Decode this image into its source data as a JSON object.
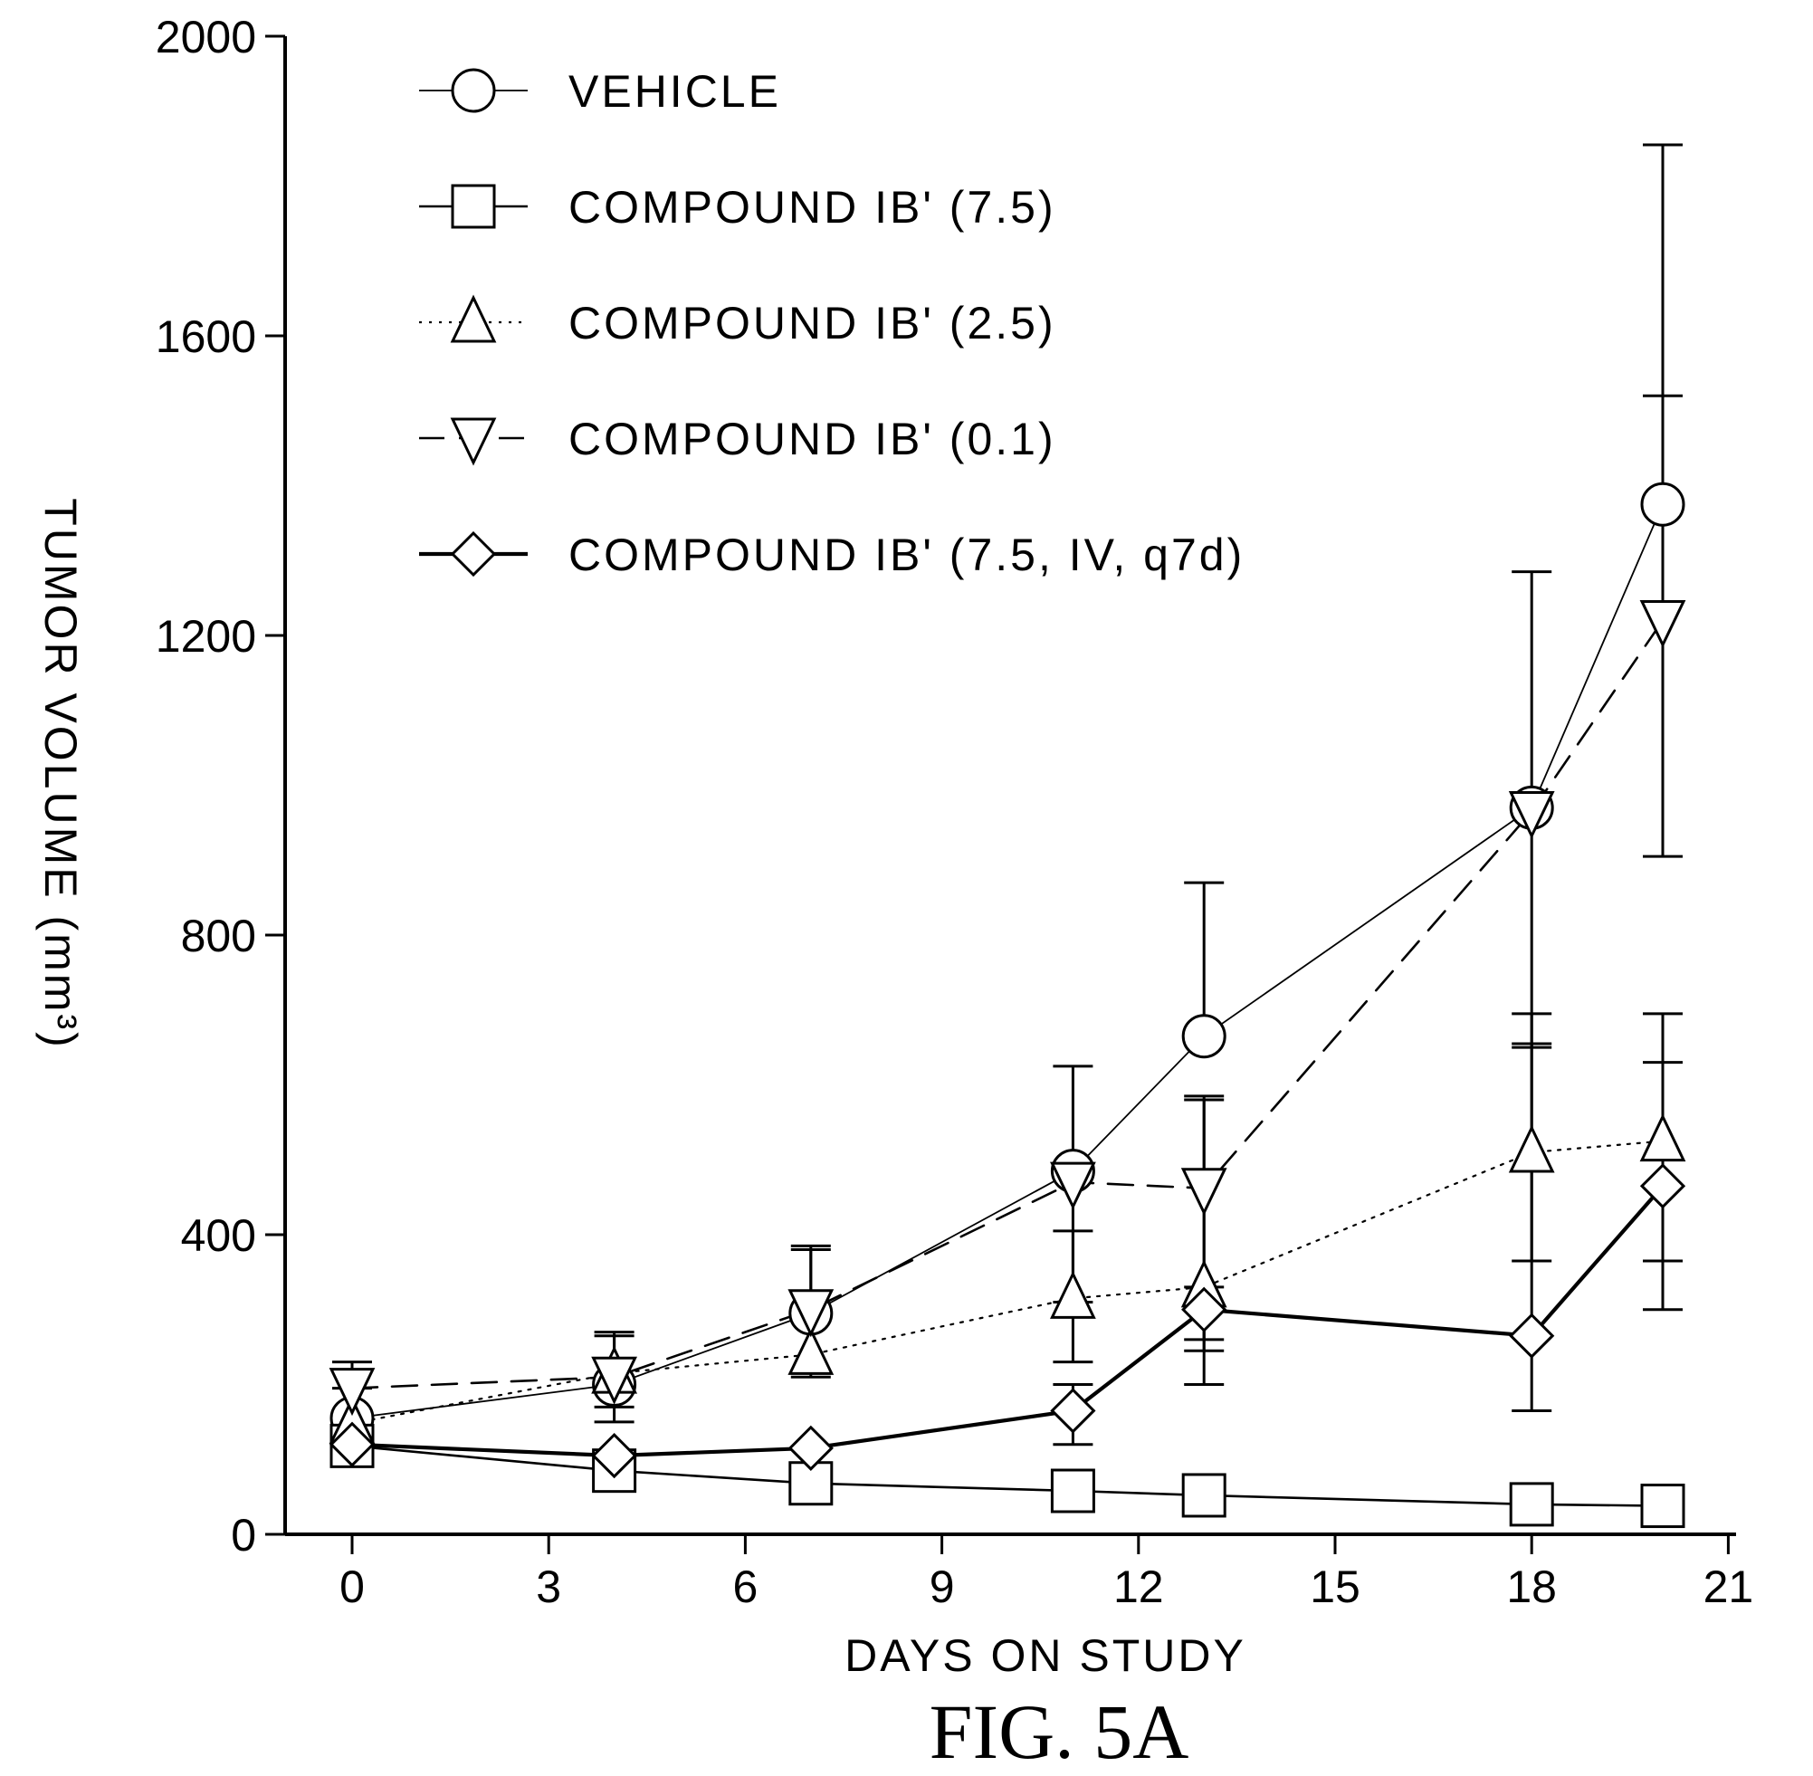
{
  "figure": {
    "caption": "FIG. 5A"
  },
  "chart_data": {
    "type": "line",
    "xlabel": "DAYS ON STUDY",
    "ylabel": "TUMOR VOLUME (mm³)",
    "xlim": [
      -1,
      21
    ],
    "ylim": [
      0,
      2000
    ],
    "xticks": [
      0,
      3,
      6,
      9,
      12,
      15,
      18,
      21
    ],
    "yticks": [
      0,
      400,
      800,
      1200,
      1600,
      2000
    ],
    "grid": false,
    "legend_position": "top-left",
    "series": [
      {
        "name": "VEHICLE",
        "marker": "circle",
        "line_style": "thin-solid",
        "x": [
          0,
          4,
          7,
          11,
          13,
          18,
          20
        ],
        "y": [
          155,
          200,
          295,
          485,
          665,
          970,
          1375
        ],
        "err": [
          [
            155,
            155
          ],
          [
            200,
            200
          ],
          [
            295,
            295
          ],
          [
            485,
            485
          ],
          [
            665,
            870
          ],
          [
            970,
            970
          ],
          [
            1375,
            1855
          ]
        ]
      },
      {
        "name": "COMPOUND IB' (7.5)",
        "marker": "square",
        "line_style": "solid",
        "x": [
          0,
          4,
          7,
          11,
          13,
          18,
          20
        ],
        "y": [
          118,
          85,
          68,
          58,
          52,
          40,
          38
        ]
      },
      {
        "name": "COMPOUND IB' (2.5)",
        "marker": "triangle-up",
        "line_style": "dotted",
        "x": [
          0,
          4,
          7,
          11,
          13,
          18,
          20
        ],
        "y": [
          148,
          215,
          240,
          315,
          330,
          510,
          525
        ],
        "err": [
          [
            148,
            148
          ],
          [
            170,
            265
          ],
          [
            215,
            380
          ],
          [
            230,
            405
          ],
          [
            245,
            580
          ],
          [
            365,
            655
          ],
          [
            365,
            630
          ]
        ]
      },
      {
        "name": "COMPOUND IB' (0.1)",
        "marker": "triangle-down",
        "line_style": "dashed",
        "x": [
          0,
          4,
          7,
          11,
          13,
          18,
          20
        ],
        "y": [
          195,
          210,
          300,
          470,
          462,
          965,
          1220
        ],
        "err": [
          [
            195,
            230
          ],
          [
            150,
            270
          ],
          [
            210,
            385
          ],
          [
            310,
            625
          ],
          [
            260,
            585
          ],
          [
            650,
            1285
          ],
          [
            905,
            1520
          ]
        ]
      },
      {
        "name": "COMPOUND IB' (7.5, IV, q7d)",
        "marker": "diamond",
        "line_style": "thick-solid",
        "x": [
          0,
          4,
          7,
          11,
          13,
          18,
          20
        ],
        "y": [
          120,
          105,
          115,
          165,
          300,
          265,
          465
        ],
        "err": [
          [
            120,
            120
          ],
          [
            105,
            105
          ],
          [
            115,
            115
          ],
          [
            120,
            200
          ],
          [
            200,
            330
          ],
          [
            165,
            695
          ],
          [
            300,
            695
          ]
        ]
      }
    ]
  }
}
